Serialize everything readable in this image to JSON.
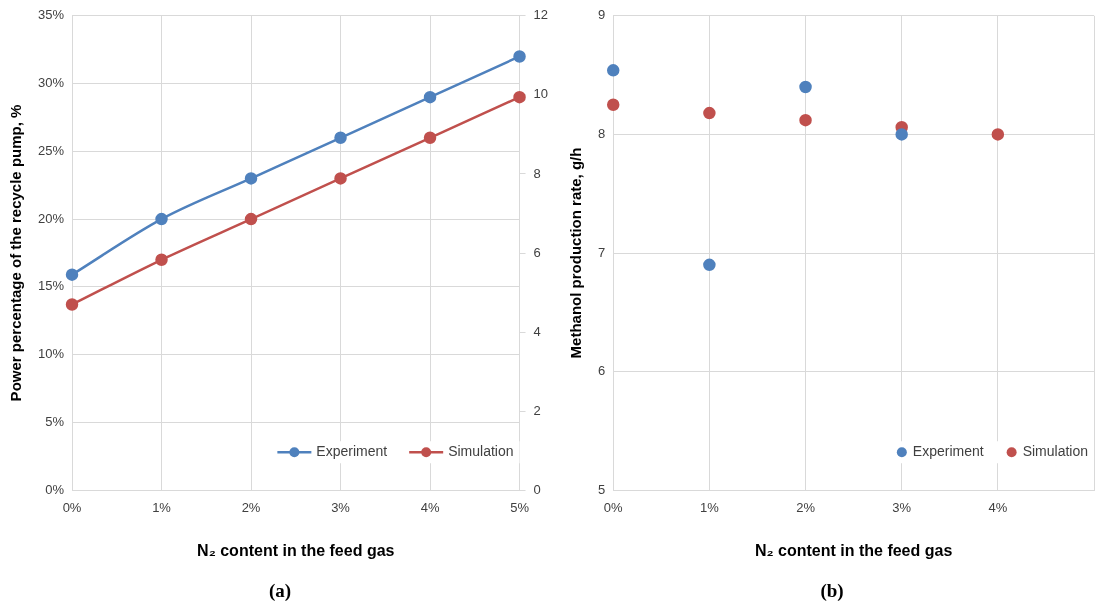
{
  "chart_data": [
    {
      "type": "line",
      "title": "(a)",
      "xlabel": "N₂ content in the feed gas",
      "ylabel": "Power percentage of the recycle pump, %",
      "categories": [
        "0%",
        "1%",
        "2%",
        "3%",
        "4%",
        "5%"
      ],
      "series": [
        {
          "name": "Experiment",
          "color": "#4f81bd",
          "values": [
            15.9,
            20,
            23,
            26,
            29,
            32
          ]
        },
        {
          "name": "Simulation",
          "color": "#c0504d",
          "values": [
            13.7,
            17,
            20,
            23,
            26,
            29
          ]
        }
      ],
      "ylim": [
        0,
        35
      ],
      "yticks": [
        {
          "value": 0,
          "label": "0%"
        },
        {
          "value": 5,
          "label": "5%"
        },
        {
          "value": 10,
          "label": "10%"
        },
        {
          "value": 15,
          "label": "15%"
        },
        {
          "value": 20,
          "label": "20%"
        },
        {
          "value": 25,
          "label": "25%"
        },
        {
          "value": 30,
          "label": "30%"
        },
        {
          "value": 35,
          "label": "35%"
        }
      ],
      "y2lim": [
        0,
        12
      ],
      "y2ticks": [
        0,
        2,
        4,
        6,
        8,
        10,
        12
      ],
      "grid": true,
      "legend": "bottom right",
      "marker": "circle"
    },
    {
      "type": "scatter",
      "title": "(b)",
      "xlabel": "N₂ content in the feed gas",
      "ylabel": "Methanol production rate, g/h",
      "categories": [
        "0%",
        "1%",
        "2%",
        "3%",
        "4%",
        null
      ],
      "series": [
        {
          "name": "Experiment",
          "color": "#4f81bd",
          "values": [
            8.54,
            6.9,
            8.4,
            8.0,
            null,
            null
          ]
        },
        {
          "name": "Simulation",
          "color": "#c0504d",
          "values": [
            8.25,
            8.18,
            8.12,
            8.06,
            8.0,
            null
          ]
        }
      ],
      "ylim": [
        5,
        9
      ],
      "yticks": [
        5,
        6,
        7,
        8,
        9
      ],
      "grid": true,
      "legend": "bottom right",
      "marker": "circle"
    }
  ]
}
